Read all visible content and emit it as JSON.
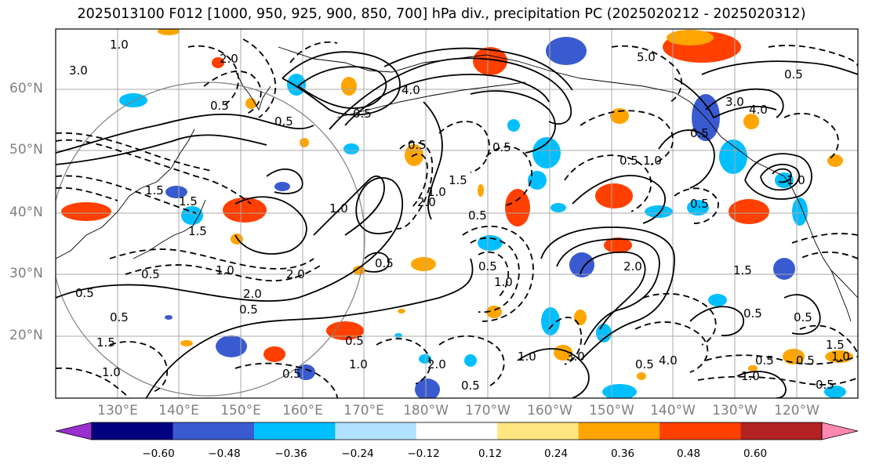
{
  "title": "2025013100 F012 [1000, 950, 925, 900, 850, 700] hPa div., precipitation PC (2025020212 - 2025020312)",
  "map": {
    "lat_labels": [
      {
        "text": "60°N",
        "lat": 60
      },
      {
        "text": "50°N",
        "lat": 50
      },
      {
        "text": "40°N",
        "lat": 40
      },
      {
        "text": "30°N",
        "lat": 30
      },
      {
        "text": "20°N",
        "lat": 20
      }
    ],
    "lon_labels": [
      {
        "text": "130°E",
        "lon": 130
      },
      {
        "text": "140°E",
        "lon": 140
      },
      {
        "text": "150°E",
        "lon": 150
      },
      {
        "text": "160°E",
        "lon": 160
      },
      {
        "text": "170°E",
        "lon": 170
      },
      {
        "text": "180°W",
        "lon": 180
      },
      {
        "text": "170°W",
        "lon": 190
      },
      {
        "text": "160°W",
        "lon": 200
      },
      {
        "text": "150°W",
        "lon": 210
      },
      {
        "text": "140°W",
        "lon": 220
      },
      {
        "text": "130°W",
        "lon": 230
      },
      {
        "text": "120°W",
        "lon": 240
      }
    ],
    "lon_range": [
      120,
      250
    ],
    "lat_range": [
      10,
      70
    ],
    "grid": true,
    "contour_labels": [
      "3.0",
      "1.0",
      "2.0",
      "0.5",
      "1.5",
      "4.0",
      "5.0",
      "1.5",
      "2.0",
      "0.5",
      "1.0",
      "0.5",
      "0.5",
      "1.0",
      "0.5",
      "1.5",
      "2.0",
      "1.0",
      "0.5",
      "0.5",
      "1.0",
      "1.5",
      "0.5",
      "3.0",
      "1.0",
      "0.5",
      "0.5",
      "0.5",
      "1.0",
      "0.5",
      "0.5",
      "1.0",
      "0.5",
      "4.0",
      "3.0",
      "1.0",
      "2.0",
      "0.5",
      "0.5",
      "1.0",
      "0.5",
      "2.0",
      "1.5",
      "1.0",
      "0.5",
      "0.5",
      "0.5",
      "1.5",
      "0.5",
      "0.5",
      "1.0",
      "0.5",
      "2.0",
      "4.0",
      "0.5",
      "0.5",
      "1.5"
    ],
    "colors": {
      "contour": "#000000",
      "grid": "#a9a9a9",
      "land": "#000000",
      "circle": "#808080"
    }
  },
  "colorbar": {
    "ticks": [
      "−0.60",
      "−0.48",
      "−0.36",
      "−0.24",
      "−0.12",
      "0.12",
      "0.24",
      "0.36",
      "0.48",
      "0.60"
    ],
    "colors": [
      "#9b30d0",
      "#000080",
      "#3a5bd0",
      "#00bfff",
      "#b0e2ff",
      "#ffffff",
      "#ffe680",
      "#ffa500",
      "#ff4000",
      "#b22222",
      "#ff88b0"
    ]
  }
}
